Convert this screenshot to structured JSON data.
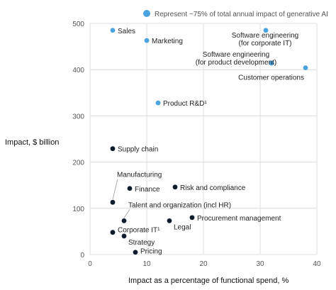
{
  "chart_data": {
    "type": "scatter",
    "xlabel": "Impact as a percentage of functional spend, %",
    "ylabel": "Impact, $ billion",
    "xlim": [
      0,
      40
    ],
    "ylim": [
      0,
      500
    ],
    "x_ticks": [
      "0",
      "10",
      "20",
      "30",
      "40"
    ],
    "y_ticks": [
      "0",
      "100",
      "200",
      "300",
      "400",
      "500"
    ],
    "grid": "vertical and horizontal, light gray",
    "legend": {
      "position": "top-right",
      "text": "Represent ~75% of total annual impact of generative AI",
      "marker_color": "#4aa3df"
    },
    "colors": {
      "highlight": "#4aa3df",
      "other": "#0d1b2a"
    },
    "points": [
      {
        "label": "Sales",
        "x": 4,
        "y": 485,
        "group": "highlight"
      },
      {
        "label": "Marketing",
        "x": 10,
        "y": 463,
        "group": "highlight"
      },
      {
        "label": "Software engineering (for corporate IT)",
        "x": 31,
        "y": 485,
        "group": "highlight"
      },
      {
        "label": "Software engineering (for product development)",
        "x": 32,
        "y": 414,
        "group": "highlight"
      },
      {
        "label": "Customer operations",
        "x": 38,
        "y": 404,
        "group": "highlight"
      },
      {
        "label": "Product R&D¹",
        "x": 12,
        "y": 328,
        "group": "highlight"
      },
      {
        "label": "Supply chain",
        "x": 4,
        "y": 229,
        "group": "other"
      },
      {
        "label": "Manufacturing",
        "x": 4,
        "y": 113,
        "group": "other"
      },
      {
        "label": "Finance",
        "x": 7,
        "y": 143,
        "group": "other"
      },
      {
        "label": "Risk and compliance",
        "x": 15,
        "y": 146,
        "group": "other"
      },
      {
        "label": "Talent and organization (incl HR)",
        "x": 6,
        "y": 73,
        "group": "other"
      },
      {
        "label": "Procurement management",
        "x": 18,
        "y": 80,
        "group": "other"
      },
      {
        "label": "Legal",
        "x": 14,
        "y": 73,
        "group": "other"
      },
      {
        "label": "Corporate IT¹",
        "x": 4,
        "y": 48,
        "group": "other"
      },
      {
        "label": "Strategy",
        "x": 6,
        "y": 40,
        "group": "other"
      },
      {
        "label": "Pricing",
        "x": 8,
        "y": 5,
        "group": "other"
      }
    ]
  }
}
